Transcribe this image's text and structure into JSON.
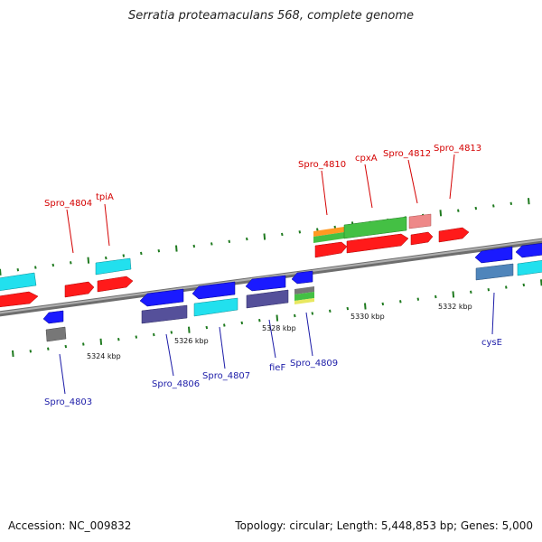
{
  "title": "Serratia proteamaculans 568, complete genome",
  "footer": {
    "accession": "Accession: NC_009832",
    "summary": "Topology: circular; Length: 5,448,853 bp; Genes: 5,000"
  },
  "kbp_labels": [
    "5324 kbp",
    "5326 kbp",
    "5328 kbp",
    "5330 kbp",
    "5332 kbp"
  ],
  "forward_gene_labels": [
    "Spro_4804",
    "tpiA",
    "Spro_4810",
    "cpxA",
    "Spro_4812",
    "Spro_4813"
  ],
  "reverse_gene_labels": [
    "Spro_4803",
    "Spro_4806",
    "Spro_4807",
    "fieF",
    "Spro_4809",
    "cysE"
  ],
  "colors": {
    "backbone": "#8a8a8a",
    "tick": "#1f7a1f",
    "forward_label": "#d40000",
    "reverse_label": "#1c1ca8",
    "cds_forward": "#ff1a1a",
    "cds_reverse": "#1a1aff",
    "cyan": "#22e0ee",
    "purple": "#55509a",
    "green": "#44c044",
    "orange": "#ff9922",
    "pink": "#ee8888",
    "steel": "#4f85bb",
    "grey": "#777777"
  }
}
